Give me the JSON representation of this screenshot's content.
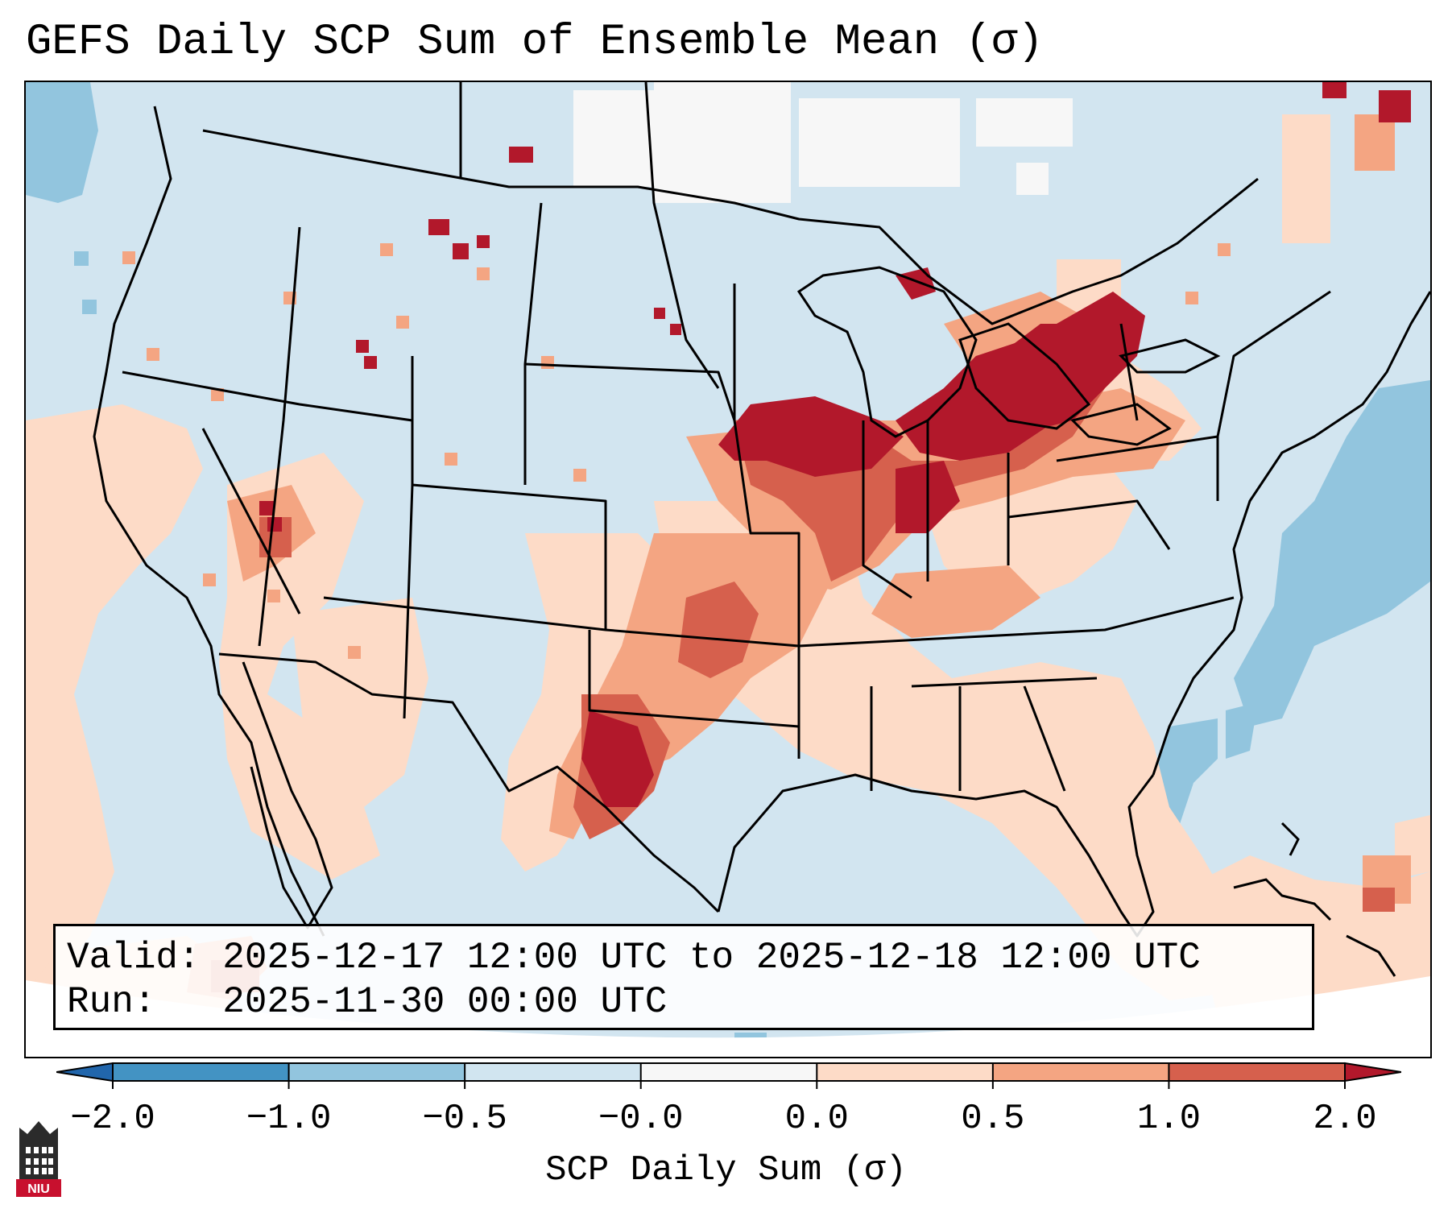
{
  "title": "GEFS Daily SCP Sum of Ensemble Mean (σ)",
  "info": {
    "valid_label": "Valid:",
    "valid_value": "2025-12-17 12:00 UTC to 2025-12-18 12:00 UTC",
    "run_label": "Run:",
    "run_value": "2025-11-30 00:00 UTC"
  },
  "colorbar": {
    "label": "SCP Daily Sum (σ)",
    "ticks": [
      "−2.0",
      "−1.0",
      "−0.5",
      "−0.0",
      "0.0",
      "0.5",
      "1.0",
      "2.0"
    ],
    "bins": [
      {
        "range": "< -2.0",
        "color": "#2166ac"
      },
      {
        "range": "-2.0 to -1.0",
        "color": "#4393c3"
      },
      {
        "range": "-1.0 to -0.5",
        "color": "#92c5de"
      },
      {
        "range": "-0.5 to -0.0",
        "color": "#d1e5f0"
      },
      {
        "range": "-0.0 to 0.0",
        "color": "#f7f7f7"
      },
      {
        "range": "0.0 to 0.5",
        "color": "#fddbc7"
      },
      {
        "range": "0.5 to 1.0",
        "color": "#f4a582"
      },
      {
        "range": "1.0 to 2.0",
        "color": "#d6604d"
      },
      {
        "range": "> 2.0",
        "color": "#b2182b"
      }
    ]
  },
  "map": {
    "region": "Contiguous United States",
    "background_color": "#d2e5f0",
    "highlight_regions": [
      {
        "area": "Iowa / Illinois / Indiana / Michigan / Ohio",
        "level": "> 2.0",
        "color": "#b2182b"
      },
      {
        "area": "Northwest Texas / Oklahoma",
        "level": "1.0 to 2.0",
        "color": "#d6604d"
      },
      {
        "area": "Mississippi / Ohio Valley",
        "level": "0.5 to 1.0",
        "color": "#f4a582"
      },
      {
        "area": "Southeast / Gulf / Southwest",
        "level": "0.0 to 0.5",
        "color": "#fddbc7"
      },
      {
        "area": "Western Atlantic",
        "level": "-1.0 to -0.5",
        "color": "#92c5de"
      }
    ]
  },
  "logo": {
    "text": "NIU"
  }
}
